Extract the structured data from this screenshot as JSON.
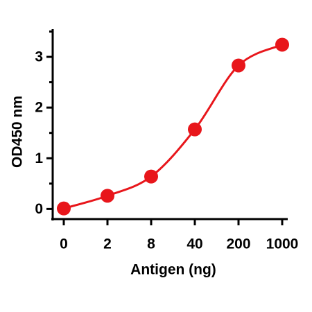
{
  "chart_data": {
    "type": "line",
    "x_label": "Antigen (ng)",
    "y_label": "OD450 nm",
    "categories": [
      "0",
      "2",
      "8",
      "40",
      "200",
      "1000"
    ],
    "series": [
      {
        "color": "#e8161b",
        "values": [
          0.01,
          0.26,
          0.64,
          1.57,
          2.83,
          3.24
        ]
      }
    ],
    "ylim": [
      -0.2,
      3.52
    ],
    "yticks": [
      0,
      1,
      2,
      3
    ],
    "yminorticks": [
      0.5,
      1.5,
      2.5,
      3.5
    ],
    "markers": true,
    "smooth": true
  }
}
